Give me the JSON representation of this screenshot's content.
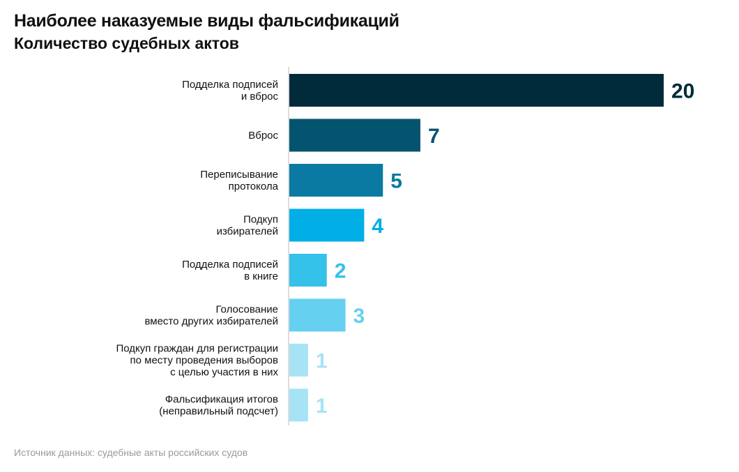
{
  "header": {
    "title": "Наиболее наказуемые виды фальсификаций",
    "subtitle": "Количество судебных актов"
  },
  "footer": {
    "source": "Источник данных: судебные акты российских судов"
  },
  "chart_data": {
    "type": "bar",
    "orientation": "horizontal",
    "title": "Наиболее наказуемые виды фальсификаций",
    "subtitle": "Количество судебных актов",
    "xlabel": "",
    "ylabel": "",
    "xlim": [
      0,
      20
    ],
    "grid": false,
    "legend": "none",
    "categories": [
      [
        "Подделка подписей",
        "и вброс"
      ],
      [
        "Вброс"
      ],
      [
        "Переписывание",
        "протокола"
      ],
      [
        "Подкуп",
        "избирателей"
      ],
      [
        "Подделка подписей",
        "в книге"
      ],
      [
        "Голосование",
        "вместо других избирателей"
      ],
      [
        "Подкуп граждан для регистрации",
        "по месту проведения выборов",
        "с целью участия в них"
      ],
      [
        "Фальсификация итогов",
        "(неправильный подсчет)"
      ]
    ],
    "values": [
      20,
      7,
      5,
      4,
      2,
      3,
      1,
      1
    ],
    "colors": [
      "#012b3b",
      "#04546f",
      "#0a7aa3",
      "#02aee6",
      "#34c1ea",
      "#65d0f0",
      "#a6e3f5",
      "#a6e3f5"
    ]
  }
}
